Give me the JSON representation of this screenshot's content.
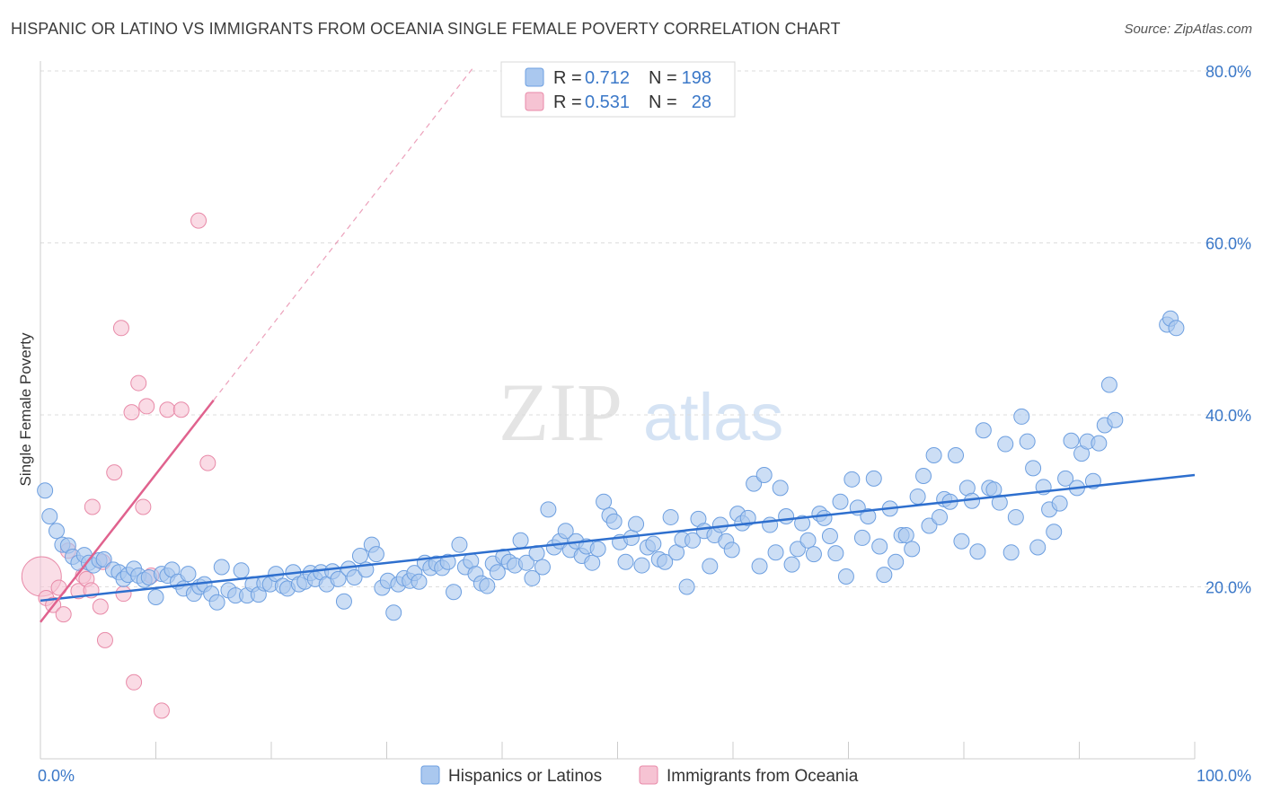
{
  "title": "HISPANIC OR LATINO VS IMMIGRANTS FROM OCEANIA SINGLE FEMALE POVERTY CORRELATION CHART",
  "source": "Source: ZipAtlas.com",
  "watermark": {
    "zip": "ZIP",
    "atlas": "atlas"
  },
  "colors": {
    "blue_fill": "#aac8ef",
    "blue_stroke": "#6d9fe0",
    "blue_line": "#2e6fce",
    "pink_fill": "#f6c3d3",
    "pink_stroke": "#e88aa8",
    "pink_line": "#e0628e",
    "axis_text": "#3b78c8",
    "grid": "#dddddd"
  },
  "legend": {
    "rows": [
      {
        "r_label": "R =",
        "r_value": "0.712",
        "n_label": "N =",
        "n_value": "198"
      },
      {
        "r_label": "R =",
        "r_value": "0.531",
        "n_label": "N =",
        "n_value": "28"
      }
    ]
  },
  "chart_data": {
    "type": "scatter",
    "title": "HISPANIC OR LATINO VS IMMIGRANTS FROM OCEANIA SINGLE FEMALE POVERTY CORRELATION CHART",
    "xlabel": "",
    "ylabel": "Single Female Poverty",
    "xlim": [
      0,
      100
    ],
    "ylim": [
      0,
      80
    ],
    "x_tick_labels": [
      "0.0%",
      "100.0%"
    ],
    "y_ticks": [
      20,
      40,
      60,
      80
    ],
    "y_tick_labels": [
      "20.0%",
      "40.0%",
      "60.0%",
      "80.0%"
    ],
    "grid": true,
    "legend_entries": [
      "Hispanics or Latinos",
      "Immigrants from Oceania"
    ],
    "series": [
      {
        "name": "Hispanics or Latinos",
        "r": 0.712,
        "n": 198,
        "trend": {
          "x": [
            0,
            100
          ],
          "y": [
            18.4,
            33.0
          ]
        },
        "points": [
          [
            0.4,
            31.2
          ],
          [
            0.8,
            28.2
          ],
          [
            1.4,
            26.5
          ],
          [
            1.9,
            24.9
          ],
          [
            2.4,
            24.8
          ],
          [
            2.8,
            23.5
          ],
          [
            3.3,
            22.8
          ],
          [
            3.8,
            23.7
          ],
          [
            4.2,
            22.8
          ],
          [
            4.6,
            22.5
          ],
          [
            5.1,
            23.1
          ],
          [
            5.5,
            23.2
          ],
          [
            6.3,
            22.0
          ],
          [
            6.8,
            21.7
          ],
          [
            7.2,
            20.9
          ],
          [
            7.6,
            21.4
          ],
          [
            8.1,
            22.1
          ],
          [
            8.5,
            21.3
          ],
          [
            9.0,
            20.8
          ],
          [
            9.4,
            21.1
          ],
          [
            10.0,
            18.8
          ],
          [
            10.5,
            21.5
          ],
          [
            11.0,
            21.3
          ],
          [
            11.4,
            22.0
          ],
          [
            11.9,
            20.6
          ],
          [
            12.4,
            19.8
          ],
          [
            12.8,
            21.5
          ],
          [
            13.3,
            19.2
          ],
          [
            13.8,
            20.0
          ],
          [
            14.2,
            20.3
          ],
          [
            14.8,
            19.2
          ],
          [
            15.3,
            18.2
          ],
          [
            15.7,
            22.3
          ],
          [
            16.3,
            19.6
          ],
          [
            16.9,
            19.0
          ],
          [
            17.4,
            21.9
          ],
          [
            17.9,
            19.0
          ],
          [
            18.4,
            20.3
          ],
          [
            18.9,
            19.1
          ],
          [
            19.4,
            20.4
          ],
          [
            19.9,
            20.3
          ],
          [
            20.4,
            21.5
          ],
          [
            21.0,
            20.1
          ],
          [
            21.4,
            19.8
          ],
          [
            21.9,
            21.7
          ],
          [
            22.4,
            20.3
          ],
          [
            22.9,
            20.6
          ],
          [
            23.4,
            21.6
          ],
          [
            23.8,
            20.9
          ],
          [
            24.3,
            21.7
          ],
          [
            24.8,
            20.3
          ],
          [
            25.3,
            21.8
          ],
          [
            25.8,
            20.9
          ],
          [
            26.3,
            18.3
          ],
          [
            26.7,
            22.1
          ],
          [
            27.2,
            21.1
          ],
          [
            27.7,
            23.6
          ],
          [
            28.2,
            22.0
          ],
          [
            28.7,
            24.9
          ],
          [
            29.1,
            23.8
          ],
          [
            29.6,
            19.9
          ],
          [
            30.1,
            20.7
          ],
          [
            30.6,
            17.0
          ],
          [
            31.0,
            20.3
          ],
          [
            31.5,
            21.0
          ],
          [
            32.0,
            20.7
          ],
          [
            32.4,
            21.6
          ],
          [
            32.8,
            20.6
          ],
          [
            33.3,
            22.8
          ],
          [
            33.8,
            22.2
          ],
          [
            34.3,
            22.7
          ],
          [
            34.8,
            22.2
          ],
          [
            35.3,
            22.9
          ],
          [
            35.8,
            19.4
          ],
          [
            36.3,
            24.9
          ],
          [
            36.8,
            22.3
          ],
          [
            37.3,
            23.0
          ],
          [
            37.7,
            21.5
          ],
          [
            38.2,
            20.4
          ],
          [
            38.7,
            20.1
          ],
          [
            39.2,
            22.7
          ],
          [
            39.6,
            21.7
          ],
          [
            40.1,
            23.5
          ],
          [
            40.6,
            22.9
          ],
          [
            41.1,
            22.5
          ],
          [
            41.6,
            25.4
          ],
          [
            42.1,
            22.8
          ],
          [
            42.6,
            21.0
          ],
          [
            43.0,
            23.9
          ],
          [
            43.5,
            22.3
          ],
          [
            44.0,
            29.0
          ],
          [
            44.5,
            24.6
          ],
          [
            45.0,
            25.3
          ],
          [
            45.5,
            26.5
          ],
          [
            45.9,
            24.3
          ],
          [
            46.4,
            25.3
          ],
          [
            46.9,
            23.6
          ],
          [
            47.3,
            24.7
          ],
          [
            47.8,
            22.8
          ],
          [
            48.3,
            24.4
          ],
          [
            48.8,
            29.9
          ],
          [
            49.3,
            28.3
          ],
          [
            49.7,
            27.6
          ],
          [
            50.2,
            25.2
          ],
          [
            50.7,
            22.9
          ],
          [
            51.2,
            25.7
          ],
          [
            51.6,
            27.3
          ],
          [
            52.1,
            22.5
          ],
          [
            52.6,
            24.6
          ],
          [
            53.1,
            25.0
          ],
          [
            53.6,
            23.2
          ],
          [
            54.1,
            22.9
          ],
          [
            54.6,
            28.1
          ],
          [
            55.1,
            24.0
          ],
          [
            55.6,
            25.5
          ],
          [
            56.0,
            20.0
          ],
          [
            56.5,
            25.4
          ],
          [
            57.0,
            27.9
          ],
          [
            57.5,
            26.5
          ],
          [
            58.0,
            22.4
          ],
          [
            58.4,
            26.0
          ],
          [
            58.9,
            27.2
          ],
          [
            59.4,
            25.3
          ],
          [
            59.9,
            24.3
          ],
          [
            60.4,
            28.5
          ],
          [
            60.8,
            27.4
          ],
          [
            61.3,
            28.0
          ],
          [
            61.8,
            32.0
          ],
          [
            62.3,
            22.4
          ],
          [
            62.7,
            33.0
          ],
          [
            63.2,
            27.2
          ],
          [
            63.7,
            24.0
          ],
          [
            64.1,
            31.5
          ],
          [
            64.6,
            28.2
          ],
          [
            65.1,
            22.6
          ],
          [
            65.6,
            24.4
          ],
          [
            66.0,
            27.4
          ],
          [
            66.5,
            25.4
          ],
          [
            67.0,
            23.8
          ],
          [
            67.5,
            28.5
          ],
          [
            67.9,
            28.0
          ],
          [
            68.4,
            25.9
          ],
          [
            68.9,
            23.9
          ],
          [
            69.3,
            29.9
          ],
          [
            69.8,
            21.2
          ],
          [
            70.3,
            32.5
          ],
          [
            70.8,
            29.2
          ],
          [
            71.2,
            25.7
          ],
          [
            71.7,
            28.2
          ],
          [
            72.2,
            32.6
          ],
          [
            72.7,
            24.7
          ],
          [
            73.1,
            21.4
          ],
          [
            73.6,
            29.1
          ],
          [
            74.1,
            22.9
          ],
          [
            74.6,
            26.0
          ],
          [
            75.0,
            26.0
          ],
          [
            75.5,
            24.4
          ],
          [
            76.0,
            30.5
          ],
          [
            76.5,
            32.9
          ],
          [
            77.0,
            27.1
          ],
          [
            77.4,
            35.3
          ],
          [
            77.9,
            28.1
          ],
          [
            78.3,
            30.2
          ],
          [
            78.8,
            29.9
          ],
          [
            79.3,
            35.3
          ],
          [
            79.8,
            25.3
          ],
          [
            80.3,
            31.5
          ],
          [
            80.7,
            30.0
          ],
          [
            81.2,
            24.1
          ],
          [
            81.7,
            38.2
          ],
          [
            82.2,
            31.5
          ],
          [
            82.6,
            31.3
          ],
          [
            83.1,
            29.8
          ],
          [
            83.6,
            36.6
          ],
          [
            84.1,
            24.0
          ],
          [
            84.5,
            28.1
          ],
          [
            85.0,
            39.8
          ],
          [
            85.5,
            36.9
          ],
          [
            86.0,
            33.8
          ],
          [
            86.4,
            24.6
          ],
          [
            86.9,
            31.6
          ],
          [
            87.4,
            29.0
          ],
          [
            87.8,
            26.4
          ],
          [
            88.3,
            29.7
          ],
          [
            88.8,
            32.6
          ],
          [
            89.3,
            37.0
          ],
          [
            89.8,
            31.5
          ],
          [
            90.2,
            35.5
          ],
          [
            90.7,
            36.9
          ],
          [
            91.2,
            32.3
          ],
          [
            91.7,
            36.7
          ],
          [
            92.2,
            38.8
          ],
          [
            92.6,
            43.5
          ],
          [
            93.1,
            39.4
          ],
          [
            97.6,
            50.5
          ],
          [
            97.9,
            51.2
          ],
          [
            98.4,
            50.1
          ]
        ]
      },
      {
        "name": "Immigrants from Oceania",
        "r": 0.531,
        "n": 28,
        "trend": {
          "x": [
            0,
            15
          ],
          "y": [
            15.9,
            41.7
          ]
        },
        "points": [
          [
            0.1,
            21.2
          ],
          [
            0.5,
            18.7
          ],
          [
            1.1,
            17.9
          ],
          [
            1.6,
            19.9
          ],
          [
            2.0,
            16.8
          ],
          [
            2.4,
            24.2
          ],
          [
            3.3,
            19.5
          ],
          [
            3.7,
            21.3
          ],
          [
            4.0,
            20.9
          ],
          [
            4.4,
            19.6
          ],
          [
            4.5,
            29.3
          ],
          [
            5.2,
            17.7
          ],
          [
            5.4,
            22.9
          ],
          [
            5.6,
            13.8
          ],
          [
            6.4,
            33.3
          ],
          [
            7.0,
            50.1
          ],
          [
            7.2,
            19.2
          ],
          [
            7.9,
            40.3
          ],
          [
            8.1,
            8.9
          ],
          [
            8.5,
            43.7
          ],
          [
            8.9,
            29.3
          ],
          [
            9.2,
            41.0
          ],
          [
            9.6,
            21.3
          ],
          [
            10.5,
            5.6
          ],
          [
            11.0,
            40.6
          ],
          [
            12.2,
            40.6
          ],
          [
            13.7,
            62.6
          ],
          [
            14.5,
            34.4
          ]
        ]
      }
    ]
  }
}
